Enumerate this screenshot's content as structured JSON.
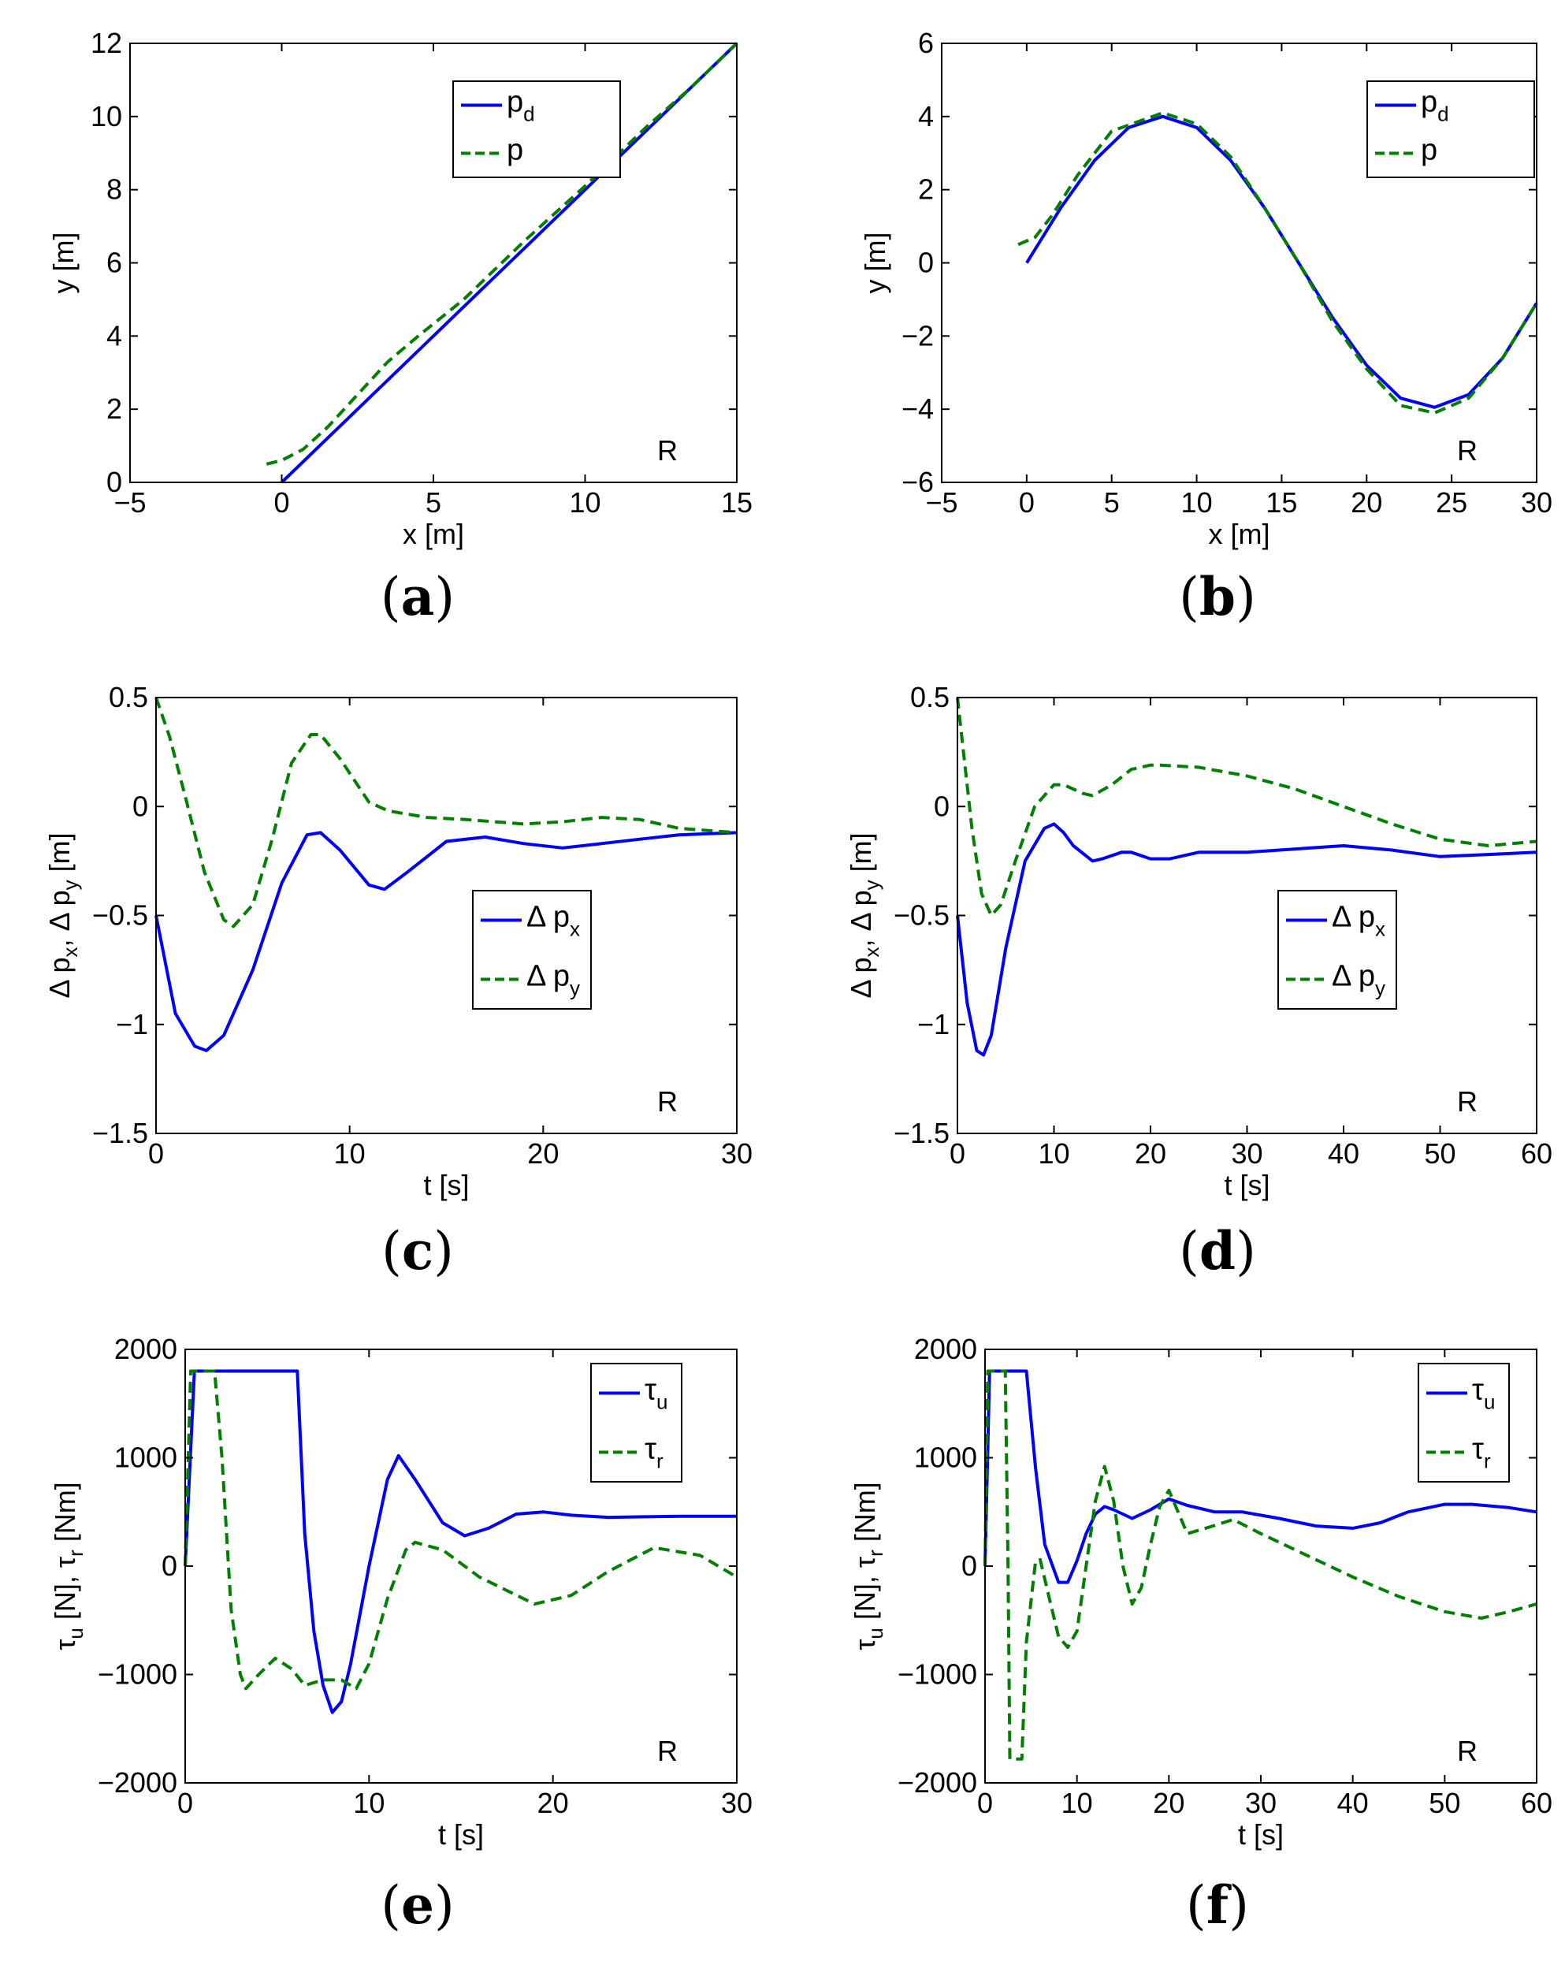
{
  "colors": {
    "desired": "#0000ff",
    "actual": "#007f00",
    "axis": "#000000"
  },
  "chart_data": [
    {
      "id": "a",
      "type": "line",
      "caption": "a",
      "xlabel": "x [m]",
      "ylabel": "y [m]",
      "xlim": [
        -5,
        15
      ],
      "ylim": [
        0,
        12
      ],
      "xticks": [
        -5,
        0,
        5,
        10,
        15
      ],
      "xtick_labels": [
        "−5",
        "0",
        "5",
        "10",
        "15"
      ],
      "yticks": [
        0,
        2,
        4,
        6,
        8,
        10,
        12
      ],
      "ytick_labels": [
        "0",
        "2",
        "4",
        "6",
        "8",
        "10",
        "12"
      ],
      "corner_text": "R",
      "legend": {
        "position": "top-center",
        "entries": [
          {
            "base": "p",
            "sub": "d",
            "style": "solid",
            "color": "#0000ff"
          },
          {
            "base": "p",
            "sub": "",
            "style": "dashed",
            "color": "#007f00"
          }
        ]
      },
      "series": [
        {
          "name": "p_d",
          "style": "solid",
          "color": "#0000ff",
          "x": [
            0,
            15
          ],
          "y": [
            0,
            12
          ]
        },
        {
          "name": "p",
          "style": "dashed",
          "color": "#007f00",
          "x": [
            -0.5,
            0,
            0.7,
            1.5,
            2.5,
            3.5,
            4.5,
            6,
            8,
            10,
            12,
            13.5,
            15
          ],
          "y": [
            0.5,
            0.6,
            0.9,
            1.5,
            2.4,
            3.3,
            4.0,
            5.0,
            6.6,
            8.1,
            9.7,
            10.8,
            12
          ]
        }
      ]
    },
    {
      "id": "b",
      "type": "line",
      "caption": "b",
      "xlabel": "x [m]",
      "ylabel": "y [m]",
      "xlim": [
        -5,
        30
      ],
      "ylim": [
        -6,
        6
      ],
      "xticks": [
        -5,
        0,
        5,
        10,
        15,
        20,
        25,
        30
      ],
      "xtick_labels": [
        "−5",
        "0",
        "5",
        "10",
        "15",
        "20",
        "25",
        "30"
      ],
      "yticks": [
        -6,
        -4,
        -2,
        0,
        2,
        4,
        6
      ],
      "ytick_labels": [
        "−6",
        "−4",
        "−2",
        "0",
        "2",
        "4",
        "6"
      ],
      "corner_text": "R",
      "legend": {
        "position": "top-right",
        "entries": [
          {
            "base": "p",
            "sub": "d",
            "style": "solid",
            "color": "#0000ff"
          },
          {
            "base": "p",
            "sub": "",
            "style": "dashed",
            "color": "#007f00"
          }
        ]
      },
      "series": [
        {
          "name": "p_d",
          "style": "solid",
          "color": "#0000ff",
          "x": [
            0,
            2,
            4,
            6,
            8,
            10,
            12,
            14,
            16,
            18,
            20,
            22,
            24,
            26,
            28,
            30
          ],
          "y": [
            0,
            1.5,
            2.8,
            3.7,
            4.0,
            3.7,
            2.8,
            1.5,
            0,
            -1.5,
            -2.8,
            -3.7,
            -3.95,
            -3.6,
            -2.6,
            -1.1
          ]
        },
        {
          "name": "p",
          "style": "dashed",
          "color": "#007f00",
          "x": [
            -0.5,
            0.5,
            1.5,
            3,
            5,
            8,
            10,
            12,
            14,
            16,
            18,
            20,
            22,
            24,
            26,
            28,
            30
          ],
          "y": [
            0.5,
            0.7,
            1.3,
            2.4,
            3.6,
            4.1,
            3.8,
            2.9,
            1.5,
            0,
            -1.6,
            -2.9,
            -3.9,
            -4.1,
            -3.7,
            -2.6,
            -1.1
          ]
        }
      ]
    },
    {
      "id": "c",
      "type": "line",
      "caption": "c",
      "xlabel": "t [s]",
      "ylabel": "Δ p_x, Δ p_y [m]",
      "xlim": [
        0,
        30
      ],
      "ylim": [
        -1.5,
        0.5
      ],
      "xticks": [
        0,
        10,
        20,
        30
      ],
      "xtick_labels": [
        "0",
        "10",
        "20",
        "30"
      ],
      "yticks": [
        -1.5,
        -1,
        -0.5,
        0,
        0.5
      ],
      "ytick_labels": [
        "−1.5",
        "−1",
        "−0.5",
        "0",
        "0.5"
      ],
      "corner_text": "R",
      "legend": {
        "position": "center-right",
        "entries": [
          {
            "base": "Δ p",
            "sub": "x",
            "style": "solid",
            "color": "#0000ff"
          },
          {
            "base": "Δ p",
            "sub": "y",
            "style": "dashed",
            "color": "#007f00"
          }
        ]
      },
      "series": [
        {
          "name": "Δ p_x",
          "style": "solid",
          "color": "#0000ff",
          "x": [
            0,
            1,
            2,
            2.6,
            3.5,
            5,
            6.5,
            7.8,
            8.5,
            9.5,
            11,
            11.8,
            13,
            15,
            17,
            19,
            21,
            23,
            25,
            27,
            30
          ],
          "y": [
            -0.5,
            -0.95,
            -1.1,
            -1.12,
            -1.05,
            -0.75,
            -0.35,
            -0.13,
            -0.12,
            -0.2,
            -0.36,
            -0.38,
            -0.3,
            -0.16,
            -0.14,
            -0.17,
            -0.19,
            -0.17,
            -0.15,
            -0.13,
            -0.12
          ]
        },
        {
          "name": "Δ p_y",
          "style": "dashed",
          "color": "#007f00",
          "x": [
            0,
            0.7,
            1.5,
            2.5,
            3.5,
            4,
            5,
            6,
            7,
            8,
            8.5,
            9.5,
            11,
            12,
            14,
            16,
            19,
            21,
            23,
            25,
            27,
            30
          ],
          "y": [
            0.5,
            0.32,
            0.05,
            -0.3,
            -0.52,
            -0.55,
            -0.45,
            -0.15,
            0.2,
            0.33,
            0.33,
            0.22,
            0.02,
            -0.02,
            -0.05,
            -0.06,
            -0.08,
            -0.07,
            -0.05,
            -0.06,
            -0.1,
            -0.12
          ]
        }
      ]
    },
    {
      "id": "d",
      "type": "line",
      "caption": "d",
      "xlabel": "t [s]",
      "ylabel": "Δ p_x, Δ p_y [m]",
      "xlim": [
        0,
        60
      ],
      "ylim": [
        -1.5,
        0.5
      ],
      "xticks": [
        0,
        10,
        20,
        30,
        40,
        50,
        60
      ],
      "xtick_labels": [
        "0",
        "10",
        "20",
        "30",
        "40",
        "50",
        "60"
      ],
      "yticks": [
        -1.5,
        -1,
        -0.5,
        0,
        0.5
      ],
      "ytick_labels": [
        "−1.5",
        "−1",
        "−0.5",
        "0",
        "0.5"
      ],
      "corner_text": "R",
      "legend": {
        "position": "center-right",
        "entries": [
          {
            "base": "Δ p",
            "sub": "x",
            "style": "solid",
            "color": "#0000ff"
          },
          {
            "base": "Δ p",
            "sub": "y",
            "style": "dashed",
            "color": "#007f00"
          }
        ]
      },
      "series": [
        {
          "name": "Δ p_x",
          "style": "solid",
          "color": "#0000ff",
          "x": [
            0,
            1,
            2,
            2.7,
            3.5,
            5,
            7,
            9,
            10,
            11,
            12,
            14,
            15,
            17,
            18,
            20,
            22,
            25,
            30,
            40,
            45,
            50,
            55,
            60
          ],
          "y": [
            -0.5,
            -0.9,
            -1.12,
            -1.14,
            -1.05,
            -0.65,
            -0.25,
            -0.1,
            -0.08,
            -0.12,
            -0.18,
            -0.25,
            -0.24,
            -0.21,
            -0.21,
            -0.24,
            -0.24,
            -0.21,
            -0.21,
            -0.18,
            -0.2,
            -0.23,
            -0.22,
            -0.21
          ]
        },
        {
          "name": "Δ p_y",
          "style": "dashed",
          "color": "#007f00",
          "x": [
            0,
            0.5,
            1.5,
            2.5,
            3.5,
            4.5,
            6,
            8,
            10,
            11,
            13,
            14,
            16,
            18,
            20,
            21,
            25,
            30,
            35,
            40,
            45,
            50,
            55,
            60
          ],
          "y": [
            0.5,
            0.3,
            -0.1,
            -0.4,
            -0.5,
            -0.45,
            -0.25,
            0,
            0.1,
            0.1,
            0.06,
            0.05,
            0.1,
            0.17,
            0.19,
            0.19,
            0.18,
            0.14,
            0.08,
            0.0,
            -0.08,
            -0.15,
            -0.18,
            -0.16
          ]
        }
      ]
    },
    {
      "id": "e",
      "type": "line",
      "caption": "e",
      "xlabel": "t [s]",
      "ylabel": "τ_u [N], τ_r [Nm]",
      "xlim": [
        0,
        30
      ],
      "ylim": [
        -2000,
        2000
      ],
      "xticks": [
        0,
        10,
        20,
        30
      ],
      "xtick_labels": [
        "0",
        "10",
        "20",
        "30"
      ],
      "yticks": [
        -2000,
        -1000,
        0,
        1000,
        2000
      ],
      "ytick_labels": [
        "−2000",
        "−1000",
        "0",
        "1000",
        "2000"
      ],
      "corner_text": "R",
      "legend": {
        "position": "top-right",
        "entries": [
          {
            "base": "τ",
            "sub": "u",
            "style": "solid",
            "color": "#0000ff"
          },
          {
            "base": "τ",
            "sub": "r",
            "style": "dashed",
            "color": "#007f00"
          }
        ]
      },
      "series": [
        {
          "name": "τ_u",
          "style": "solid",
          "color": "#0000ff",
          "x": [
            0,
            0.5,
            6.1,
            6.5,
            7,
            7.5,
            8,
            8.5,
            9,
            10,
            11,
            11.6,
            12.5,
            14,
            15.2,
            16.5,
            18,
            19.5,
            21,
            23,
            25,
            27,
            30
          ],
          "y": [
            0,
            1800,
            1800,
            300,
            -600,
            -1100,
            -1350,
            -1250,
            -900,
            0,
            800,
            1020,
            800,
            400,
            280,
            350,
            480,
            500,
            470,
            450,
            455,
            460,
            460
          ]
        },
        {
          "name": "τ_r",
          "style": "dashed",
          "color": "#007f00",
          "x": [
            0,
            0.3,
            1.6,
            2,
            2.5,
            3,
            3.3,
            4,
            4.9,
            5.8,
            6.5,
            7.5,
            8.5,
            9.3,
            10,
            11,
            12,
            12.5,
            14,
            16,
            19,
            21,
            23,
            25.5,
            28,
            30
          ],
          "y": [
            0,
            1800,
            1800,
            1000,
            -400,
            -1000,
            -1130,
            -1000,
            -850,
            -950,
            -1100,
            -1050,
            -1050,
            -1130,
            -900,
            -300,
            150,
            220,
            150,
            -100,
            -350,
            -270,
            -50,
            170,
            100,
            -100
          ]
        }
      ]
    },
    {
      "id": "f",
      "type": "line",
      "caption": "f",
      "xlabel": "t [s]",
      "ylabel": "τ_u [N], τ_r [Nm]",
      "xlim": [
        0,
        60
      ],
      "ylim": [
        -2000,
        2000
      ],
      "xticks": [
        0,
        10,
        20,
        30,
        40,
        50,
        60
      ],
      "xtick_labels": [
        "0",
        "10",
        "20",
        "30",
        "40",
        "50",
        "60"
      ],
      "yticks": [
        -2000,
        -1000,
        0,
        1000,
        2000
      ],
      "ytick_labels": [
        "−2000",
        "−1000",
        "0",
        "1000",
        "2000"
      ],
      "corner_text": "R",
      "legend": {
        "position": "top-right",
        "entries": [
          {
            "base": "τ",
            "sub": "u",
            "style": "solid",
            "color": "#0000ff"
          },
          {
            "base": "τ",
            "sub": "r",
            "style": "dashed",
            "color": "#007f00"
          }
        ]
      },
      "series": [
        {
          "name": "τ_u",
          "style": "solid",
          "color": "#0000ff",
          "x": [
            0,
            0.5,
            4.5,
            5.5,
            6.5,
            8,
            9,
            10,
            11,
            12,
            13,
            14,
            16,
            18,
            20,
            22,
            25,
            28,
            32,
            36,
            40,
            43,
            46,
            50,
            53,
            57,
            60
          ],
          "y": [
            0,
            1800,
            1800,
            900,
            200,
            -150,
            -150,
            50,
            300,
            480,
            550,
            520,
            440,
            520,
            620,
            560,
            500,
            500,
            440,
            370,
            350,
            400,
            500,
            570,
            570,
            540,
            500
          ]
        },
        {
          "name": "τ_r",
          "style": "dashed",
          "color": "#007f00",
          "x": [
            0,
            0.3,
            2.2,
            2.5,
            2.7,
            4,
            4.5,
            5.5,
            6,
            7,
            8,
            9,
            10,
            11,
            12,
            13,
            14,
            15,
            16,
            17,
            18,
            19,
            20,
            21,
            22,
            24,
            27,
            30,
            35,
            40,
            45,
            50,
            54,
            57,
            60
          ],
          "y": [
            0,
            1800,
            1800,
            0,
            -1780,
            -1780,
            -700,
            50,
            60,
            -300,
            -650,
            -750,
            -600,
            0,
            600,
            920,
            600,
            0,
            -350,
            -200,
            200,
            550,
            700,
            500,
            300,
            350,
            430,
            300,
            100,
            -100,
            -280,
            -420,
            -480,
            -420,
            -350
          ]
        }
      ]
    }
  ]
}
